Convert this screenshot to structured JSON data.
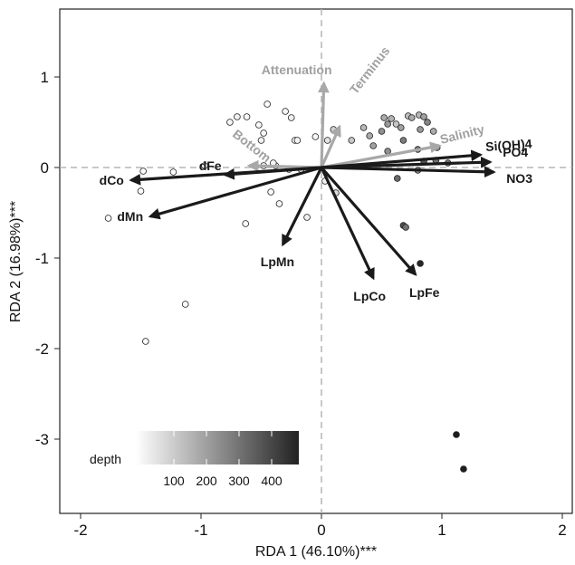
{
  "chart_data": {
    "type": "scatter",
    "xlabel": "RDA 1 (46.10%)***",
    "ylabel": "RDA 2 (16.98%)***",
    "xlim": [
      -2.2,
      2.15
    ],
    "ylim": [
      -3.95,
      1.75
    ],
    "xticks": [
      -2,
      -1,
      0,
      1,
      2
    ],
    "yticks": [
      1,
      0,
      -1,
      -2,
      -3
    ],
    "grid": false,
    "reference_lines": {
      "x": 0,
      "y": 0,
      "style": "dashed"
    },
    "legend": {
      "title": "depth",
      "type": "gradient",
      "ticks": [
        "100",
        "200",
        "300",
        "400"
      ],
      "colors": [
        "#ffffff",
        "#222222"
      ],
      "placement": "bottom-left"
    },
    "points": [
      {
        "x": -1.77,
        "y": -0.56,
        "depth": 5
      },
      {
        "x": -1.46,
        "y": -1.92,
        "depth": 5
      },
      {
        "x": -1.13,
        "y": -1.51,
        "depth": 5
      },
      {
        "x": -1.23,
        "y": -0.05,
        "depth": 10
      },
      {
        "x": -1.48,
        "y": -0.04,
        "depth": 8
      },
      {
        "x": -1.5,
        "y": -0.26,
        "depth": 10
      },
      {
        "x": -0.63,
        "y": -0.62,
        "depth": 5
      },
      {
        "x": -0.97,
        "y": 0.02,
        "depth": 15
      },
      {
        "x": -0.76,
        "y": 0.5,
        "depth": 20
      },
      {
        "x": -0.7,
        "y": 0.56,
        "depth": 30
      },
      {
        "x": -0.62,
        "y": 0.56,
        "depth": 10
      },
      {
        "x": -0.52,
        "y": 0.47,
        "depth": 10
      },
      {
        "x": -0.45,
        "y": 0.7,
        "depth": 5
      },
      {
        "x": -0.48,
        "y": 0.38,
        "depth": 20
      },
      {
        "x": -0.5,
        "y": 0.3,
        "depth": 30
      },
      {
        "x": -0.48,
        "y": 0.02,
        "depth": 20
      },
      {
        "x": -0.38,
        "y": 0.02,
        "depth": 40
      },
      {
        "x": -0.4,
        "y": 0.05,
        "depth": 20
      },
      {
        "x": -0.3,
        "y": 0.62,
        "depth": 20
      },
      {
        "x": -0.25,
        "y": 0.55,
        "depth": 30
      },
      {
        "x": -0.22,
        "y": 0.3,
        "depth": 10
      },
      {
        "x": -0.2,
        "y": 0.3,
        "depth": 20
      },
      {
        "x": -0.27,
        "y": -0.02,
        "depth": 40
      },
      {
        "x": -0.17,
        "y": -0.02,
        "depth": 30
      },
      {
        "x": -0.42,
        "y": -0.27,
        "depth": 10
      },
      {
        "x": -0.35,
        "y": -0.4,
        "depth": 20
      },
      {
        "x": -0.12,
        "y": -0.55,
        "depth": 30
      },
      {
        "x": -0.05,
        "y": 0.34,
        "depth": 15
      },
      {
        "x": 0.03,
        "y": -0.15,
        "depth": 30
      },
      {
        "x": 0.05,
        "y": 0.3,
        "depth": 60
      },
      {
        "x": 0.1,
        "y": 0.42,
        "depth": 100
      },
      {
        "x": 0.12,
        "y": -0.28,
        "depth": 80
      },
      {
        "x": 0.25,
        "y": 0.3,
        "depth": 120
      },
      {
        "x": 0.35,
        "y": 0.44,
        "depth": 150
      },
      {
        "x": 0.4,
        "y": 0.35,
        "depth": 180
      },
      {
        "x": 0.43,
        "y": 0.24,
        "depth": 200
      },
      {
        "x": 0.5,
        "y": 0.4,
        "depth": 240
      },
      {
        "x": 0.52,
        "y": 0.55,
        "depth": 180
      },
      {
        "x": 0.55,
        "y": 0.48,
        "depth": 220
      },
      {
        "x": 0.58,
        "y": 0.54,
        "depth": 160
      },
      {
        "x": 0.62,
        "y": 0.48,
        "depth": 120
      },
      {
        "x": 0.66,
        "y": 0.44,
        "depth": 200
      },
      {
        "x": 0.72,
        "y": 0.57,
        "depth": 140
      },
      {
        "x": 0.75,
        "y": 0.55,
        "depth": 180
      },
      {
        "x": 0.81,
        "y": 0.58,
        "depth": 160
      },
      {
        "x": 0.82,
        "y": 0.42,
        "depth": 220
      },
      {
        "x": 0.85,
        "y": 0.56,
        "depth": 200
      },
      {
        "x": 0.88,
        "y": 0.5,
        "depth": 260
      },
      {
        "x": 0.93,
        "y": 0.4,
        "depth": 180
      },
      {
        "x": 0.68,
        "y": 0.3,
        "depth": 280
      },
      {
        "x": 0.8,
        "y": 0.2,
        "depth": 300
      },
      {
        "x": 0.96,
        "y": 0.22,
        "depth": 220
      },
      {
        "x": 0.85,
        "y": 0.07,
        "depth": 360
      },
      {
        "x": 0.95,
        "y": 0.08,
        "depth": 300
      },
      {
        "x": 1.05,
        "y": 0.05,
        "depth": 280
      },
      {
        "x": 0.55,
        "y": 0.18,
        "depth": 240
      },
      {
        "x": 0.8,
        "y": -0.03,
        "depth": 250
      },
      {
        "x": 0.63,
        "y": -0.12,
        "depth": 320
      },
      {
        "x": 0.68,
        "y": -0.64,
        "depth": 380
      },
      {
        "x": 0.7,
        "y": -0.66,
        "depth": 300
      },
      {
        "x": 0.82,
        "y": -1.06,
        "depth": 460
      },
      {
        "x": 1.12,
        "y": -2.95,
        "depth": 480
      },
      {
        "x": 1.18,
        "y": -3.33,
        "depth": 480
      }
    ],
    "vectors_black": [
      {
        "label": "dCo",
        "x": -1.58,
        "y": -0.14
      },
      {
        "label": "dFe",
        "x": -0.8,
        "y": -0.08
      },
      {
        "label": "dMn",
        "x": -1.42,
        "y": -0.54
      },
      {
        "label": "LpMn",
        "x": -0.32,
        "y": -0.85
      },
      {
        "label": "LpCo",
        "x": 0.43,
        "y": -1.22
      },
      {
        "label": "LpFe",
        "x": 0.78,
        "y": -1.18
      },
      {
        "label": "Si(OH)4",
        "x": 1.32,
        "y": 0.14
      },
      {
        "label": "PO4",
        "x": 1.4,
        "y": 0.06
      },
      {
        "label": "NO3",
        "x": 1.43,
        "y": -0.05
      }
    ],
    "vectors_grey": [
      {
        "label": "Attenuation",
        "x": 0.02,
        "y": 0.93
      },
      {
        "label": "Terminus",
        "x": 0.15,
        "y": 0.45
      },
      {
        "label": "Salinity",
        "x": 0.98,
        "y": 0.24
      },
      {
        "label": "Bottom",
        "x": -0.6,
        "y": 0.02
      }
    ]
  }
}
